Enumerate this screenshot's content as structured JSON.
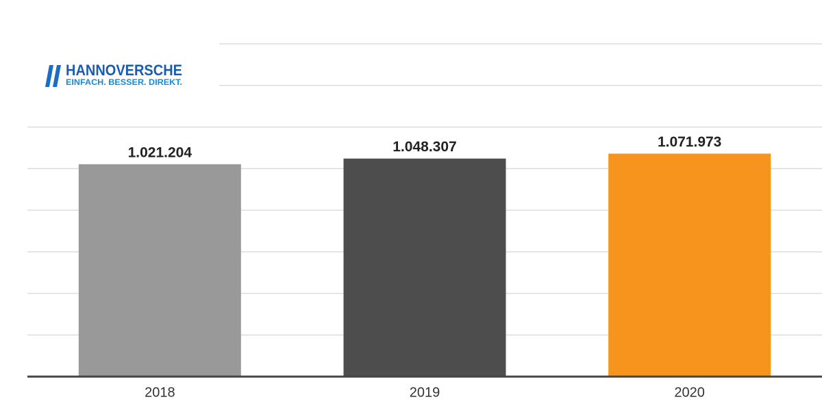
{
  "logo": {
    "name": "HANNOVERSCHE",
    "tagline": "EINFACH. BESSER. DIREKT."
  },
  "chart_data": {
    "type": "bar",
    "categories": [
      "2018",
      "2019",
      "2020"
    ],
    "values": [
      1021204,
      1048307,
      1071973
    ],
    "value_labels": [
      "1.021.204",
      "1.048.307",
      "1.071.973"
    ],
    "colors": [
      "#999999",
      "#4d4d4d",
      "#f7941d"
    ],
    "ylim": [
      0,
      1600000
    ],
    "yticks": [
      0,
      200000,
      400000,
      600000,
      800000,
      1000000,
      1200000,
      1400000,
      1600000
    ],
    "grid": true
  }
}
